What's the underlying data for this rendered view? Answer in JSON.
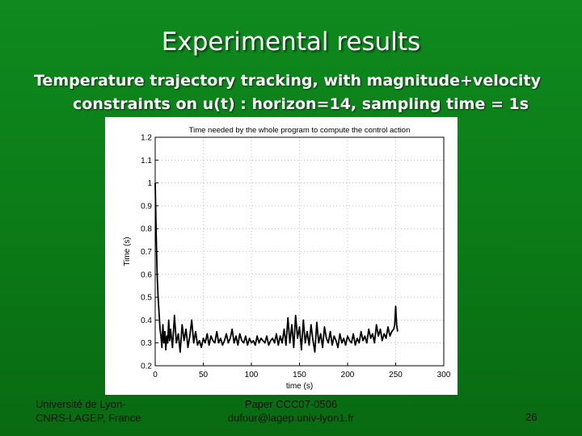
{
  "slide": {
    "title": "Experimental results",
    "subtitle_line1": "Temperature trajectory tracking, with magnitude+velocity",
    "subtitle_line2": "constraints on u(t) : horizon=14, sampling time = 1s",
    "footer_left_line1": "Université de Lyon-",
    "footer_left_line2": "CNRS-LAGEP, France",
    "footer_center_line1": "Paper CCC07-0506",
    "footer_center_line2": "dufour@lagep.univ-lyon1.fr",
    "page_number": "26"
  },
  "colors": {
    "background": "#0b7a17",
    "text": "#ffffff",
    "series": "#000000"
  },
  "chart_data": {
    "type": "line",
    "title": "Time needed by the whole program to compute the control action",
    "xlabel": "time (s)",
    "ylabel": "Time (s)",
    "xlim": [
      0,
      300
    ],
    "ylim": [
      0.2,
      1.2
    ],
    "xticks": [
      "0",
      "50",
      "100",
      "150",
      "200",
      "250",
      "300"
    ],
    "yticks": [
      "0.2",
      "0.3",
      "0.4",
      "0.5",
      "0.6",
      "0.7",
      "0.8",
      "0.9",
      "1",
      "1.1",
      "1.2"
    ],
    "grid": true,
    "series": [
      {
        "x": [
          0,
          1,
          2,
          3,
          4,
          5,
          6,
          7,
          8,
          9,
          10,
          11,
          12,
          13,
          14,
          15,
          16,
          18,
          20,
          22,
          24,
          26,
          28,
          30,
          32,
          34,
          36,
          38,
          40,
          42,
          44,
          46,
          48,
          50,
          52,
          54,
          56,
          58,
          60,
          62,
          64,
          66,
          68,
          70,
          72,
          74,
          76,
          78,
          80,
          82,
          84,
          86,
          88,
          90,
          92,
          94,
          96,
          98,
          100,
          102,
          104,
          106,
          108,
          110,
          112,
          114,
          116,
          118,
          120,
          122,
          124,
          126,
          128,
          130,
          132,
          134,
          136,
          138,
          140,
          142,
          144,
          146,
          148,
          150,
          152,
          154,
          156,
          158,
          160,
          162,
          164,
          166,
          168,
          170,
          172,
          174,
          176,
          178,
          180,
          182,
          184,
          186,
          188,
          190,
          192,
          194,
          196,
          198,
          200,
          202,
          204,
          206,
          208,
          210,
          212,
          214,
          216,
          218,
          220,
          222,
          224,
          226,
          228,
          230,
          232,
          234,
          236,
          238,
          240,
          242,
          244,
          246,
          248,
          249,
          250,
          251,
          252
        ],
        "y": [
          1.0,
          0.78,
          0.6,
          0.5,
          0.43,
          0.36,
          0.33,
          0.28,
          0.38,
          0.3,
          0.35,
          0.27,
          0.33,
          0.3,
          0.4,
          0.31,
          0.36,
          0.28,
          0.42,
          0.3,
          0.34,
          0.26,
          0.38,
          0.31,
          0.36,
          0.28,
          0.33,
          0.4,
          0.3,
          0.35,
          0.29,
          0.31,
          0.28,
          0.32,
          0.3,
          0.34,
          0.29,
          0.33,
          0.31,
          0.3,
          0.35,
          0.3,
          0.32,
          0.29,
          0.31,
          0.34,
          0.3,
          0.32,
          0.36,
          0.3,
          0.33,
          0.29,
          0.34,
          0.31,
          0.3,
          0.33,
          0.29,
          0.32,
          0.3,
          0.31,
          0.29,
          0.33,
          0.3,
          0.32,
          0.31,
          0.3,
          0.33,
          0.29,
          0.31,
          0.32,
          0.3,
          0.34,
          0.29,
          0.33,
          0.3,
          0.36,
          0.29,
          0.41,
          0.3,
          0.38,
          0.28,
          0.42,
          0.32,
          0.37,
          0.27,
          0.4,
          0.3,
          0.35,
          0.29,
          0.38,
          0.31,
          0.26,
          0.39,
          0.3,
          0.34,
          0.28,
          0.37,
          0.32,
          0.3,
          0.35,
          0.29,
          0.33,
          0.31,
          0.28,
          0.34,
          0.3,
          0.32,
          0.29,
          0.33,
          0.31,
          0.3,
          0.34,
          0.29,
          0.32,
          0.3,
          0.35,
          0.31,
          0.33,
          0.3,
          0.36,
          0.32,
          0.34,
          0.3,
          0.38,
          0.33,
          0.36,
          0.31,
          0.34,
          0.32,
          0.37,
          0.33,
          0.35,
          0.36,
          0.38,
          0.46,
          0.38,
          0.35
        ]
      }
    ]
  }
}
